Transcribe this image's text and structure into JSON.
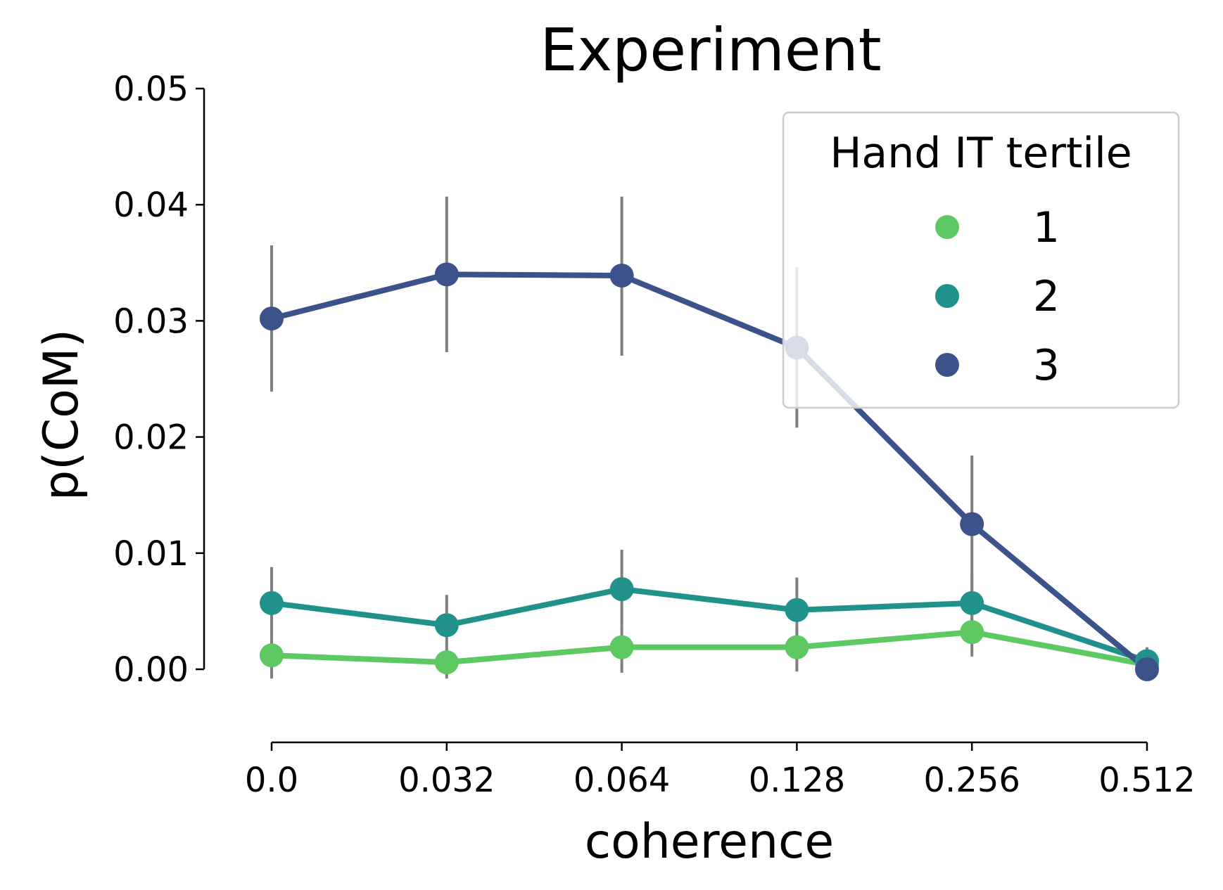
{
  "chart_data": {
    "type": "line",
    "title": "Experiment",
    "xlabel": "coherence",
    "ylabel": "p(CoM)",
    "categories": [
      "0.0",
      "0.032",
      "0.064",
      "0.128",
      "0.256",
      "0.512"
    ],
    "y_ticks": [
      "0.00",
      "0.01",
      "0.02",
      "0.03",
      "0.04",
      "0.05"
    ],
    "ylim": [
      -0.006,
      0.05
    ],
    "grid": false,
    "legend": {
      "title": "Hand IT tertile",
      "placement": "top-right"
    },
    "series": [
      {
        "name": "1",
        "color": "#5ec962",
        "values": [
          0.0012,
          0.0006,
          0.0019,
          0.0019,
          0.0032,
          0.0004
        ],
        "err_low": [
          -0.0008,
          -0.0008,
          -0.0003,
          -0.0002,
          0.0011,
          0.0
        ],
        "err_high": [
          0.0025,
          0.0018,
          0.0038,
          0.0037,
          0.0055,
          0.0009
        ]
      },
      {
        "name": "2",
        "color": "#21918c",
        "values": [
          0.0057,
          0.0038,
          0.0069,
          0.0051,
          0.0057,
          0.0007
        ],
        "err_low": [
          0.0025,
          0.0014,
          0.0038,
          0.0025,
          0.0028,
          0.0
        ],
        "err_high": [
          0.0088,
          0.0064,
          0.0103,
          0.0079,
          0.0083,
          0.0019
        ]
      },
      {
        "name": "3",
        "color": "#3b528b",
        "values": [
          0.0302,
          0.034,
          0.0339,
          0.0277,
          0.0125,
          0.0
        ],
        "err_low": [
          0.0239,
          0.0273,
          0.027,
          0.0208,
          0.0062,
          0.0
        ],
        "err_high": [
          0.0365,
          0.0407,
          0.0407,
          0.0346,
          0.0184,
          0.0
        ]
      }
    ]
  }
}
